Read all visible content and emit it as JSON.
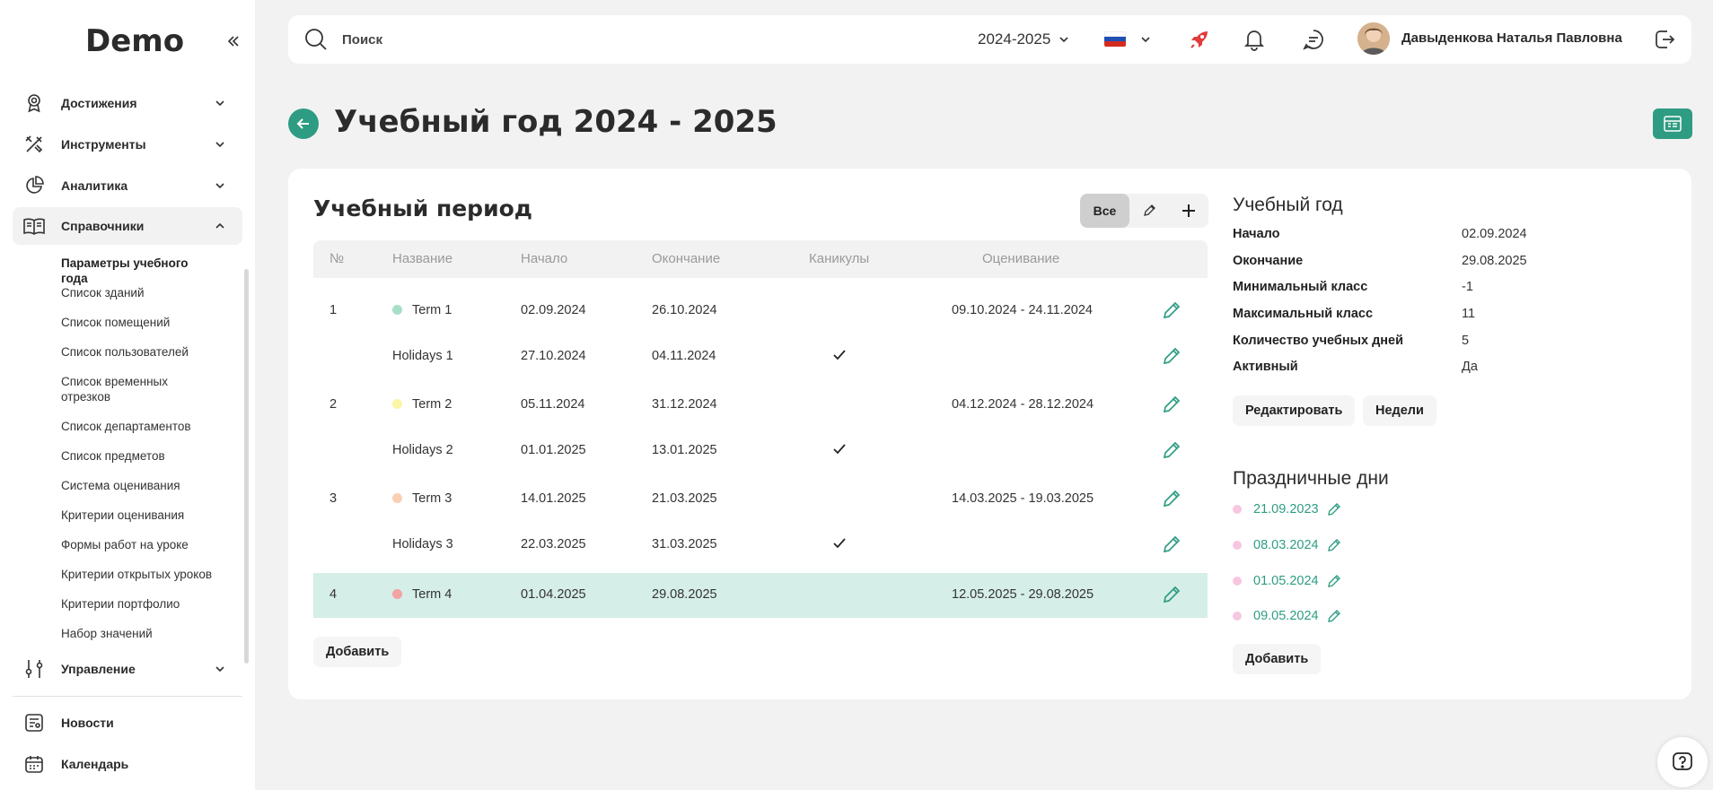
{
  "app": {
    "logo": "Demo"
  },
  "sidebar": {
    "items": [
      {
        "label": "Достижения",
        "icon": "medal-icon"
      },
      {
        "label": "Инструменты",
        "icon": "tools-icon"
      },
      {
        "label": "Аналитика",
        "icon": "pie-chart-icon"
      },
      {
        "label": "Справочники",
        "icon": "book-icon"
      },
      {
        "label": "Управление",
        "icon": "sliders-icon"
      },
      {
        "label": "Новости",
        "icon": "news-icon"
      },
      {
        "label": "Календарь",
        "icon": "calendar-icon"
      }
    ],
    "sub_items": [
      "Параметры учебного года",
      "Список зданий",
      "Список помещений",
      "Список пользователей",
      "Список временных отрезков",
      "Список департаментов",
      "Список предметов",
      "Система оценивания",
      "Критерии оценивания",
      "Формы работ на уроке",
      "Критерии открытых уроков",
      "Критерии портфолио",
      "Набор значений"
    ]
  },
  "topbar": {
    "search_placeholder": "Поиск",
    "year": "2024-2025",
    "user_name": "Давыденкова Наталья Павловна"
  },
  "page": {
    "title": "Учебный год 2024 - 2025"
  },
  "period": {
    "title": "Учебный период",
    "filter_all": "Все",
    "columns": {
      "num": "№",
      "name": "Название",
      "start": "Начало",
      "end": "Окончание",
      "holidays": "Каникулы",
      "grading": "Оценивание"
    },
    "rows": [
      {
        "num": "1",
        "name": "Term 1",
        "start": "02.09.2024",
        "end": "26.10.2024",
        "grading": "09.10.2024 - 24.11.2024",
        "color": "#a8dfc9"
      },
      {
        "num": "",
        "name": "Holidays 1",
        "start": "27.10.2024",
        "end": "04.11.2024",
        "grading": ""
      },
      {
        "num": "2",
        "name": "Term 2",
        "start": "05.11.2024",
        "end": "31.12.2024",
        "grading": "04.12.2024 - 28.12.2024",
        "color": "#fbf5a8"
      },
      {
        "num": "",
        "name": "Holidays 2",
        "start": "01.01.2025",
        "end": "13.01.2025",
        "grading": ""
      },
      {
        "num": "3",
        "name": "Term 3",
        "start": "14.01.2025",
        "end": "21.03.2025",
        "grading": "14.03.2025 - 19.03.2025",
        "color": "#f9cfb5"
      },
      {
        "num": "",
        "name": "Holidays 3",
        "start": "22.03.2025",
        "end": "31.03.2025",
        "grading": ""
      },
      {
        "num": "4",
        "name": "Term 4",
        "start": "01.04.2025",
        "end": "29.08.2025",
        "grading": "12.05.2025 - 29.08.2025",
        "color": "#f2a3a3"
      }
    ],
    "add_label": "Добавить"
  },
  "year_info": {
    "title": "Учебный год",
    "fields": [
      {
        "label": "Начало",
        "value": "02.09.2024"
      },
      {
        "label": "Окончание",
        "value": "29.08.2025"
      },
      {
        "label": "Минимальный класс",
        "value": "-1"
      },
      {
        "label": "Максимальный класс",
        "value": "11"
      },
      {
        "label": "Количество учебных дней",
        "value": "5"
      },
      {
        "label": "Активный",
        "value": "Да"
      }
    ],
    "edit_label": "Редактировать",
    "weeks_label": "Недели"
  },
  "holidays": {
    "title": "Праздничные дни",
    "dates": [
      "21.09.2023",
      "08.03.2024",
      "01.05.2024",
      "09.05.2024"
    ],
    "add_label": "Добавить"
  },
  "colors": {
    "accent": "#2e9c82",
    "highlight_row": "#d6eee8"
  }
}
